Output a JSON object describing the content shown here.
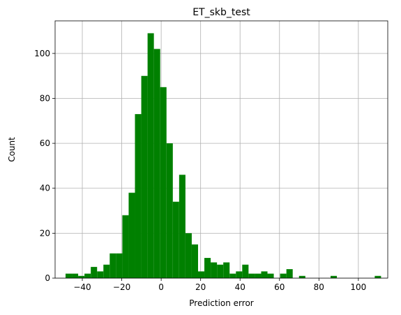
{
  "chart_data": {
    "type": "bar",
    "title": "ET_skb_test",
    "xlabel": "Prediction error",
    "ylabel": "Count",
    "xlim": [
      -53.8,
      114.9
    ],
    "ylim": [
      0,
      114.5
    ],
    "grid": true,
    "bar_color": "#008000",
    "bin_width": 3.2,
    "bins": [
      {
        "x0": -48.5,
        "x1": -45.3,
        "count": 2
      },
      {
        "x0": -45.3,
        "x1": -42.1,
        "count": 2
      },
      {
        "x0": -42.1,
        "x1": -38.9,
        "count": 1
      },
      {
        "x0": -38.9,
        "x1": -35.7,
        "count": 2
      },
      {
        "x0": -35.7,
        "x1": -32.5,
        "count": 5
      },
      {
        "x0": -32.5,
        "x1": -29.3,
        "count": 3
      },
      {
        "x0": -29.3,
        "x1": -26.1,
        "count": 6
      },
      {
        "x0": -26.1,
        "x1": -22.9,
        "count": 11
      },
      {
        "x0": -22.9,
        "x1": -19.7,
        "count": 11
      },
      {
        "x0": -19.7,
        "x1": -16.5,
        "count": 28
      },
      {
        "x0": -16.5,
        "x1": -13.3,
        "count": 38
      },
      {
        "x0": -13.3,
        "x1": -10.1,
        "count": 73
      },
      {
        "x0": -10.1,
        "x1": -6.9,
        "count": 90
      },
      {
        "x0": -6.9,
        "x1": -3.7,
        "count": 109
      },
      {
        "x0": -3.7,
        "x1": -0.5,
        "count": 102
      },
      {
        "x0": -0.5,
        "x1": 2.7,
        "count": 85
      },
      {
        "x0": 2.7,
        "x1": 5.9,
        "count": 60
      },
      {
        "x0": 5.9,
        "x1": 9.1,
        "count": 34
      },
      {
        "x0": 9.1,
        "x1": 12.3,
        "count": 46
      },
      {
        "x0": 12.3,
        "x1": 15.5,
        "count": 20
      },
      {
        "x0": 15.5,
        "x1": 18.7,
        "count": 15
      },
      {
        "x0": 18.7,
        "x1": 21.9,
        "count": 3
      },
      {
        "x0": 21.9,
        "x1": 25.1,
        "count": 9
      },
      {
        "x0": 25.1,
        "x1": 28.3,
        "count": 7
      },
      {
        "x0": 28.3,
        "x1": 31.5,
        "count": 6
      },
      {
        "x0": 31.5,
        "x1": 34.7,
        "count": 7
      },
      {
        "x0": 34.7,
        "x1": 37.9,
        "count": 2
      },
      {
        "x0": 37.9,
        "x1": 41.1,
        "count": 3
      },
      {
        "x0": 41.1,
        "x1": 44.3,
        "count": 6
      },
      {
        "x0": 44.3,
        "x1": 47.5,
        "count": 2
      },
      {
        "x0": 47.5,
        "x1": 50.7,
        "count": 2
      },
      {
        "x0": 50.7,
        "x1": 53.9,
        "count": 3
      },
      {
        "x0": 53.9,
        "x1": 57.1,
        "count": 2
      },
      {
        "x0": 57.1,
        "x1": 60.3,
        "count": 0
      },
      {
        "x0": 60.3,
        "x1": 63.5,
        "count": 2
      },
      {
        "x0": 63.5,
        "x1": 66.7,
        "count": 4
      },
      {
        "x0": 66.7,
        "x1": 69.9,
        "count": 0
      },
      {
        "x0": 69.9,
        "x1": 73.1,
        "count": 1
      },
      {
        "x0": 73.1,
        "x1": 76.3,
        "count": 0
      },
      {
        "x0": 76.3,
        "x1": 79.5,
        "count": 0
      },
      {
        "x0": 79.5,
        "x1": 82.7,
        "count": 0
      },
      {
        "x0": 82.7,
        "x1": 85.9,
        "count": 0
      },
      {
        "x0": 85.9,
        "x1": 89.1,
        "count": 1
      },
      {
        "x0": 89.1,
        "x1": 92.3,
        "count": 0
      },
      {
        "x0": 92.3,
        "x1": 95.5,
        "count": 0
      },
      {
        "x0": 95.5,
        "x1": 98.7,
        "count": 0
      },
      {
        "x0": 98.7,
        "x1": 101.9,
        "count": 0
      },
      {
        "x0": 101.9,
        "x1": 105.1,
        "count": 0
      },
      {
        "x0": 105.1,
        "x1": 108.3,
        "count": 0
      },
      {
        "x0": 108.3,
        "x1": 111.5,
        "count": 1
      }
    ],
    "xticks": [
      -40,
      -20,
      0,
      20,
      40,
      60,
      80,
      100
    ],
    "xtick_labels": [
      "−40",
      "−20",
      "0",
      "20",
      "40",
      "60",
      "80",
      "100"
    ],
    "yticks": [
      0,
      20,
      40,
      60,
      80,
      100
    ],
    "ytick_labels": [
      "0",
      "20",
      "40",
      "60",
      "80",
      "100"
    ]
  }
}
